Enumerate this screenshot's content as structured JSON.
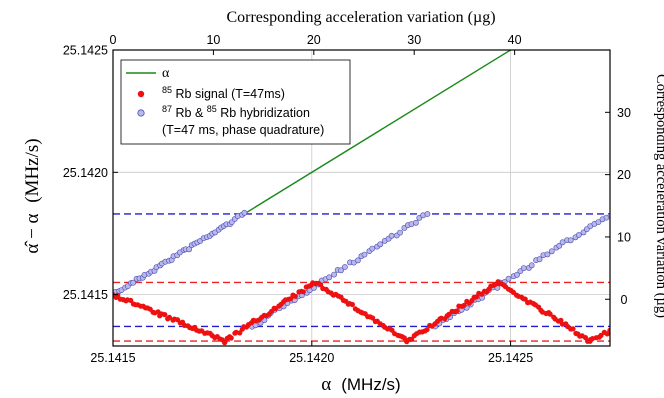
{
  "chart_data": {
    "type": "scatter",
    "top_axis_label": "Corresponding acceleration variation (µg)",
    "left_axis_label_html": "α̂ − α (MHz/s)",
    "left_axis_label_main": "α̂ − α",
    "left_axis_label_unit": "(MHz/s)",
    "right_axis_label": "Corresponding acceleration variation (µg)",
    "bottom_axis_label_greek": "α",
    "bottom_axis_label_unit": "(MHz/s)",
    "xlim": [
      25.1415,
      25.14275
    ],
    "ylim": [
      25.14129,
      25.1425
    ],
    "top_xlim": [
      0,
      49.5
    ],
    "right_ylim": [
      -7.5,
      40
    ],
    "x_ticks": [
      "25.1415",
      "25.1420",
      "25.1425"
    ],
    "x_tick_values": [
      25.1415,
      25.142,
      25.1425
    ],
    "y_ticks": [
      "25.1415",
      "25.1420",
      "25.1425"
    ],
    "y_tick_values": [
      25.1415,
      25.142,
      25.1425
    ],
    "top_ticks": [
      "0",
      "10",
      "20",
      "30",
      "40"
    ],
    "top_tick_values": [
      0,
      10,
      20,
      30,
      40
    ],
    "right_ticks": [
      "0",
      "10",
      "20",
      "30"
    ],
    "right_tick_values": [
      0,
      10,
      20,
      30
    ],
    "grid": true,
    "legend_position": "top-left",
    "legend": {
      "alpha": "α",
      "rb85_pre": "",
      "rb85_sup": "85",
      "rb85_post": "Rb signal (T=47ms)",
      "hyb_sup1": "87",
      "hyb_mid": "Rb & ",
      "hyb_sup2": "85",
      "hyb_post": "Rb hybridization",
      "hyb_line2": "(T=47 ms, phase quadrature)"
    },
    "colors": {
      "alpha_line": "#1a8a1a",
      "rb85_points": "#ee1111",
      "hyb_points_fill": "#b8b8ec",
      "hyb_points_edge": "#4a4ab0",
      "blue_dashed": "#1f1fd0",
      "red_dashed": "#ee2222",
      "grid": "#c8c8c8"
    },
    "alpha_line": {
      "x": [
        25.1415,
        25.1425
      ],
      "y": [
        25.1415,
        25.1425
      ]
    },
    "blue_dashed_levels": [
      25.14183,
      25.14137
    ],
    "red_dashed_levels": [
      25.14155,
      25.14131
    ],
    "hybrid_segments": [
      {
        "x": [
          25.1415,
          25.14183
        ],
        "y": [
          25.1415,
          25.14183
        ]
      },
      {
        "x": [
          25.14185,
          25.14229
        ],
        "y": [
          25.14137,
          25.14183
        ]
      },
      {
        "x": [
          25.14231,
          25.14275
        ],
        "y": [
          25.14137,
          25.14183
        ]
      }
    ],
    "rb85_segments": [
      {
        "x": [
          25.1415,
          25.14178
        ],
        "y": [
          25.1415,
          25.14131
        ]
      },
      {
        "x": [
          25.14178,
          25.14201
        ],
        "y": [
          25.14131,
          25.14155
        ]
      },
      {
        "x": [
          25.14201,
          25.14224
        ],
        "y": [
          25.14155,
          25.14131
        ]
      },
      {
        "x": [
          25.14224,
          25.14247
        ],
        "y": [
          25.14131,
          25.14155
        ]
      },
      {
        "x": [
          25.14247,
          25.1427
        ],
        "y": [
          25.14155,
          25.14131
        ]
      },
      {
        "x": [
          25.1427,
          25.14275
        ],
        "y": [
          25.14131,
          25.14135
        ]
      }
    ]
  }
}
